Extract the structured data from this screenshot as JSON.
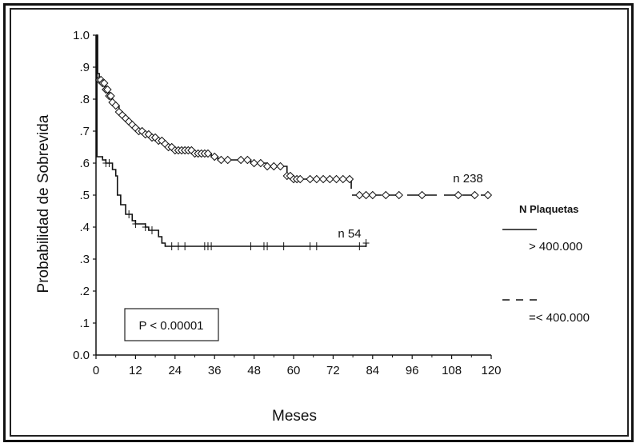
{
  "chart_data": {
    "type": "line",
    "title": "",
    "xlabel": "Meses",
    "ylabel": "Probabilidad de Sobrevida",
    "xlim": [
      0,
      120
    ],
    "ylim": [
      0,
      1.0
    ],
    "x_ticks": [
      "0",
      "12",
      "24",
      "36",
      "48",
      "60",
      "72",
      "84",
      "96",
      "108",
      "120"
    ],
    "y_ticks": [
      "0.0",
      ".1",
      ".2",
      ".3",
      ".4",
      ".5",
      ".6",
      ".7",
      ".8",
      ".9",
      "1.0"
    ],
    "legend": {
      "title": "N Plaquetas",
      "position": "right",
      "entries": [
        "> 400.000",
        "=< 400.000"
      ]
    },
    "annotation": "P < 0.00001",
    "series": [
      {
        "name": "> 400.000",
        "line_style": "solid",
        "marker": "+",
        "end_label": "n 54",
        "points": [
          [
            0,
            1.0
          ],
          [
            0.3,
            0.62
          ],
          [
            2,
            0.61
          ],
          [
            3,
            0.6
          ],
          [
            5,
            0.58
          ],
          [
            6,
            0.56
          ],
          [
            6.5,
            0.5
          ],
          [
            7.5,
            0.47
          ],
          [
            9,
            0.44
          ],
          [
            11,
            0.42
          ],
          [
            12,
            0.41
          ],
          [
            14,
            0.41
          ],
          [
            15,
            0.4
          ],
          [
            16,
            0.39
          ],
          [
            18,
            0.39
          ],
          [
            19,
            0.37
          ],
          [
            20,
            0.35
          ],
          [
            21,
            0.34
          ],
          [
            22,
            0.34
          ],
          [
            82,
            0.35
          ]
        ],
        "censor_x": [
          3,
          4,
          10,
          12,
          15,
          17,
          23,
          25,
          27,
          33,
          34,
          35,
          47,
          51,
          52,
          57,
          65,
          67,
          80,
          82
        ]
      },
      {
        "name": "=< 400.000",
        "line_style": "solid-then-dashed",
        "dash_from_x": 77,
        "marker": "diamond",
        "end_label": "n 238",
        "points": [
          [
            0,
            1.0
          ],
          [
            0.5,
            0.88
          ],
          [
            1,
            0.86
          ],
          [
            2,
            0.85
          ],
          [
            3,
            0.83
          ],
          [
            4,
            0.81
          ],
          [
            5,
            0.79
          ],
          [
            6,
            0.78
          ],
          [
            7,
            0.76
          ],
          [
            8,
            0.75
          ],
          [
            9,
            0.74
          ],
          [
            10,
            0.73
          ],
          [
            11,
            0.72
          ],
          [
            12,
            0.71
          ],
          [
            13,
            0.7
          ],
          [
            14,
            0.7
          ],
          [
            15,
            0.69
          ],
          [
            16,
            0.69
          ],
          [
            17,
            0.68
          ],
          [
            18,
            0.68
          ],
          [
            19,
            0.67
          ],
          [
            20,
            0.67
          ],
          [
            21,
            0.66
          ],
          [
            22,
            0.65
          ],
          [
            23,
            0.65
          ],
          [
            24,
            0.64
          ],
          [
            26,
            0.64
          ],
          [
            28,
            0.64
          ],
          [
            30,
            0.63
          ],
          [
            33,
            0.63
          ],
          [
            35,
            0.62
          ],
          [
            37,
            0.61
          ],
          [
            39,
            0.61
          ],
          [
            42,
            0.61
          ],
          [
            47,
            0.6
          ],
          [
            50,
            0.6
          ],
          [
            52,
            0.59
          ],
          [
            57,
            0.59
          ],
          [
            58,
            0.56
          ],
          [
            60,
            0.55
          ],
          [
            70,
            0.55
          ],
          [
            77,
            0.55
          ],
          [
            77.5,
            0.5
          ],
          [
            119,
            0.5
          ]
        ],
        "censor_x": [
          1,
          1.5,
          2,
          2.5,
          3,
          3.5,
          4,
          4.5,
          5,
          6,
          7,
          8,
          9,
          10,
          11,
          12,
          13,
          14,
          15,
          16,
          17,
          18,
          19,
          20,
          21,
          22,
          23,
          24,
          25,
          26,
          27,
          28,
          29,
          30,
          31,
          32,
          33,
          34,
          36,
          38,
          40,
          44,
          46,
          48,
          50,
          52,
          54,
          56,
          58,
          59,
          60,
          61,
          62,
          65,
          67,
          69,
          71,
          73,
          75,
          77,
          80,
          82,
          84,
          88,
          92,
          99,
          110,
          115,
          119
        ]
      }
    ]
  }
}
